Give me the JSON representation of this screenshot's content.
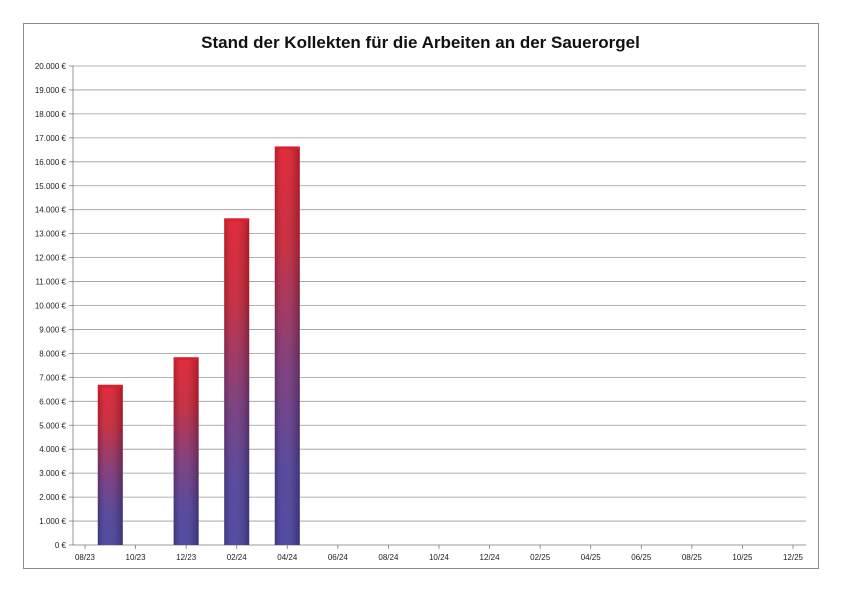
{
  "chart_data": {
    "type": "bar",
    "title": "Stand der Kollekten für die Arbeiten an  der  Sauerorgel",
    "xlabel": "",
    "ylabel": "",
    "ylim": [
      0,
      20000
    ],
    "grid": true,
    "legend": "none",
    "yticks": [
      {
        "value": 0,
        "label": "0 €"
      },
      {
        "value": 1000,
        "label": "1.000 €"
      },
      {
        "value": 2000,
        "label": "2.000 €"
      },
      {
        "value": 3000,
        "label": "3.000 €"
      },
      {
        "value": 4000,
        "label": "4.000 €"
      },
      {
        "value": 5000,
        "label": "5.000 €"
      },
      {
        "value": 6000,
        "label": "6.000 €"
      },
      {
        "value": 7000,
        "label": "7.000 €"
      },
      {
        "value": 8000,
        "label": "8.000 €"
      },
      {
        "value": 9000,
        "label": "9.000 €"
      },
      {
        "value": 10000,
        "label": "10.000 €"
      },
      {
        "value": 11000,
        "label": "11.000 €"
      },
      {
        "value": 12000,
        "label": "12.000 €"
      },
      {
        "value": 13000,
        "label": "13.000 €"
      },
      {
        "value": 14000,
        "label": "14.000 €"
      },
      {
        "value": 15000,
        "label": "15.000 €"
      },
      {
        "value": 16000,
        "label": "16.000 €"
      },
      {
        "value": 17000,
        "label": "17.000 €"
      },
      {
        "value": 18000,
        "label": "18.000 €"
      },
      {
        "value": 19000,
        "label": "19.000 €"
      },
      {
        "value": 20000,
        "label": "20.000 €"
      }
    ],
    "categories": [
      "08/23",
      "10/23",
      "12/23",
      "02/24",
      "04/24",
      "06/24",
      "08/24",
      "10/24",
      "12/24",
      "02/25",
      "04/25",
      "06/25",
      "08/25",
      "10/25",
      "12/25"
    ],
    "bars": [
      {
        "x": "09/23",
        "value": 6650
      },
      {
        "x": "12/23",
        "value": 7800
      },
      {
        "x": "02/24",
        "value": 13600
      },
      {
        "x": "04/24",
        "value": 16600
      }
    ],
    "colors": {
      "bar_top": "#e01e2e",
      "bar_bottom": "#4a3f9a",
      "grid": "#9a9a9a",
      "axis": "#7a7a7a"
    }
  }
}
